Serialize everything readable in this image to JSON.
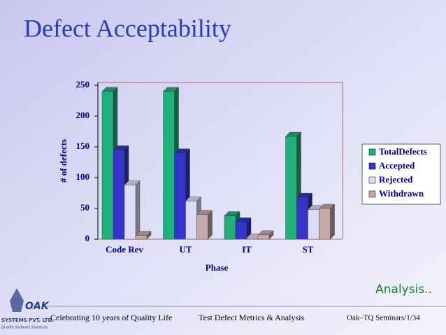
{
  "chart_data": {
    "type": "bar3d",
    "title": "Defect Acceptability",
    "x_label": "Phase",
    "y_label": "# of defects",
    "categories": [
      "Code Rev",
      "UT",
      "IT",
      "ST"
    ],
    "series": [
      {
        "name": "TotalDefects",
        "color": "#1fb07c",
        "values": [
          240,
          240,
          38,
          167
        ]
      },
      {
        "name": "Accepted",
        "color": "#3434c8",
        "values": [
          145,
          140,
          28,
          68
        ]
      },
      {
        "name": "Rejected",
        "color": "#dcdcf8",
        "values": [
          88,
          62,
          2,
          48
        ]
      },
      {
        "name": "Withdrawn",
        "color": "#c4aaaa",
        "values": [
          6,
          40,
          7,
          50
        ]
      }
    ],
    "ylim": [
      0,
      250
    ],
    "yticks": [
      0,
      50,
      100,
      150,
      200,
      250
    ],
    "grid": false,
    "legend": "right"
  },
  "slide": {
    "analysis": "Analysis..",
    "footer": [
      "Celebrating 10 years of Quality Life",
      "Test Defect Metrics & Analysis",
      "Oak–TQ Seminars/1/34"
    ],
    "logo": [
      "OAK",
      "SYSTEMS PVT. LTD.",
      "Quality Software Solutions"
    ]
  }
}
